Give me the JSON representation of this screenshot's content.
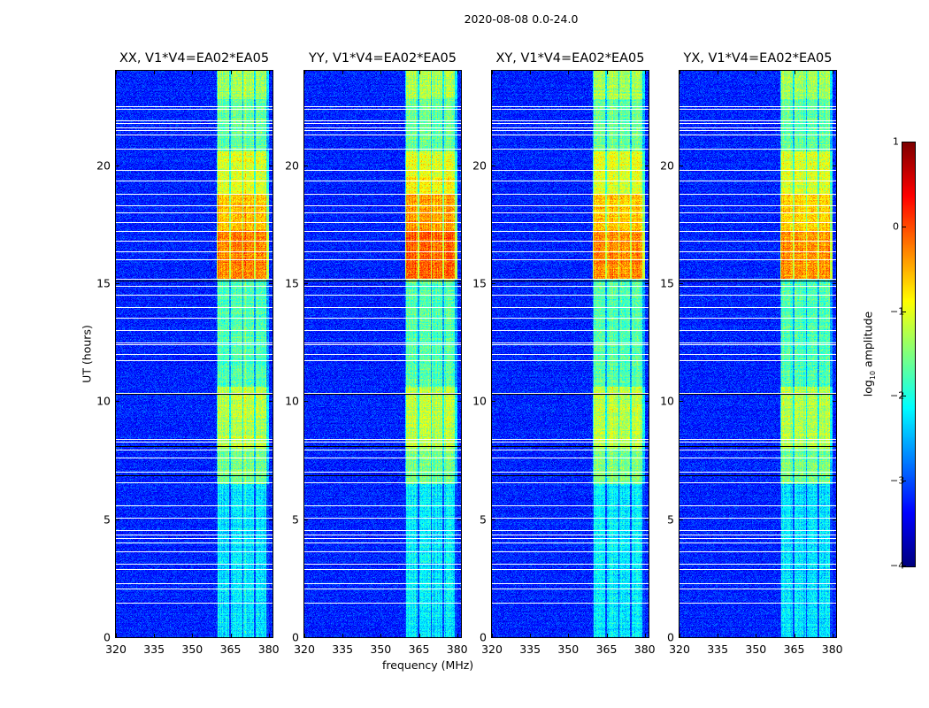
{
  "chart_data": {
    "type": "heatmap",
    "title": "2020-08-08 0.0-24.0",
    "xlabel": "frequency (MHz)",
    "ylabel": "UT (hours)",
    "xlim": [
      320,
      381.5
    ],
    "ylim": [
      0,
      24
    ],
    "xticks": [
      "320",
      "335",
      "350",
      "365",
      "380"
    ],
    "xtick_values": [
      320,
      335,
      350,
      365,
      380
    ],
    "yticks": [
      "0",
      "5",
      "10",
      "15",
      "20"
    ],
    "ytick_values": [
      0,
      5,
      10,
      15,
      20
    ],
    "panels": [
      {
        "title": "XX, V1*V4=EA02*EA05",
        "boost": 0.0
      },
      {
        "title": "YY, V1*V4=EA02*EA05",
        "boost": 0.15
      },
      {
        "title": "XY, V1*V4=EA02*EA05",
        "boost": -0.05
      },
      {
        "title": "YX, V1*V4=EA02*EA05",
        "boost": -0.05
      }
    ],
    "background_log10": -3.2,
    "rfi_subbands_mhz": [
      [
        360,
        364.6
      ],
      [
        365.3,
        369.6
      ],
      [
        370.2,
        374.3
      ],
      [
        375,
        379.2
      ]
    ],
    "band_level_by_time": [
      {
        "from": 0,
        "to": 6.5,
        "log10": -2.2
      },
      {
        "from": 6.5,
        "to": 8.0,
        "log10": -1.5
      },
      {
        "from": 8.0,
        "to": 10.6,
        "log10": -1.2
      },
      {
        "from": 10.6,
        "to": 15.2,
        "log10": -1.7
      },
      {
        "from": 15.2,
        "to": 17.2,
        "log10": -0.25
      },
      {
        "from": 17.2,
        "to": 18.8,
        "log10": -0.55
      },
      {
        "from": 18.8,
        "to": 20.6,
        "log10": -1.0
      },
      {
        "from": 20.6,
        "to": 22.8,
        "log10": -1.6
      },
      {
        "from": 22.8,
        "to": 24,
        "log10": -1.3
      }
    ],
    "flagged_hours": [
      22.5,
      22.4,
      21.9,
      21.8,
      21.6,
      21.5,
      21.3,
      20.7,
      19.8,
      19.35,
      18.8,
      18.3,
      18.0,
      17.6,
      17.2,
      16.8,
      16.35,
      16.0,
      15.2,
      14.9,
      14.5,
      14.0,
      13.55,
      13.0,
      12.5,
      12.4,
      12.0,
      11.75,
      10.35,
      8.4,
      8.3,
      7.95,
      7.6,
      7.0,
      6.55,
      5.6,
      5.05,
      4.55,
      4.35,
      4.2,
      4.0,
      3.65,
      3.1,
      2.9,
      2.3,
      2.05,
      1.45
    ],
    "missing_hours": [
      15.1,
      10.3,
      8.1,
      6.85
    ],
    "colorbar": {
      "label_log": "log",
      "label_sub": "10",
      "label_rest": " amplitude",
      "range": [
        -4,
        1
      ],
      "ticks": [
        "1",
        "0",
        "−1",
        "−2",
        "−3",
        "−4"
      ],
      "tick_values": [
        1,
        0,
        -1,
        -2,
        -3,
        -4
      ],
      "colormap": "jet"
    }
  }
}
